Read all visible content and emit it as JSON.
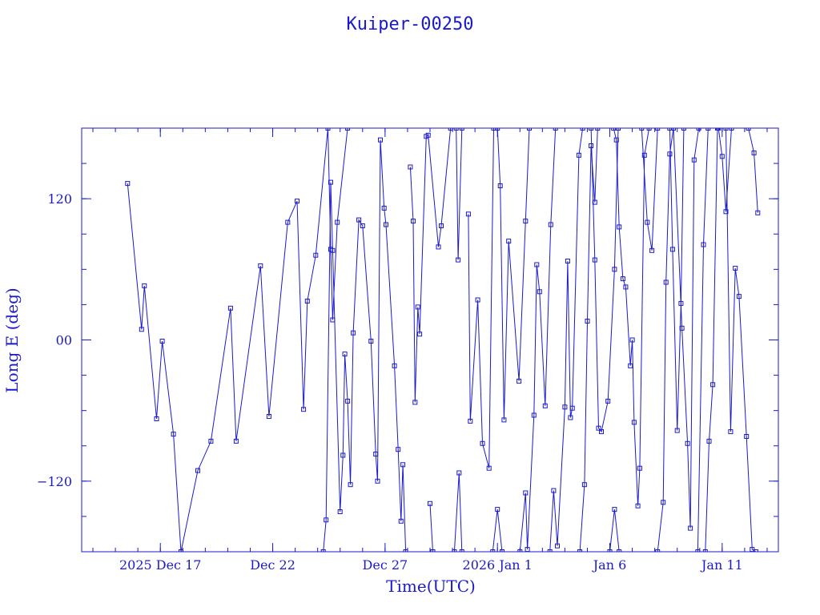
{
  "chart_data": {
    "type": "line",
    "title": "Kuiper-00250",
    "xlabel": "Time(UTC)",
    "ylabel": "Long E (deg)",
    "xlim": [
      "2025-12-13T12:00",
      "2026-01-13T12:00"
    ],
    "ylim": [
      -180,
      180
    ],
    "x_ticks": [
      {
        "date": "2025-12-17",
        "label": "2025 Dec 17"
      },
      {
        "date": "2025-12-22",
        "label": "Dec 22"
      },
      {
        "date": "2025-12-27",
        "label": "Dec 27"
      },
      {
        "date": "2026-01-01",
        "label": "2026 Jan  1"
      },
      {
        "date": "2026-01-06",
        "label": "Jan  6"
      },
      {
        "date": "2026-01-11",
        "label": "Jan 11"
      }
    ],
    "y_ticks": [
      {
        "value": 120,
        "label": "120"
      },
      {
        "value": 0,
        "label": "00"
      },
      {
        "value": -120,
        "label": "−120"
      }
    ],
    "grid": false,
    "colors": {
      "line": "#1a1acc",
      "axis": "#1a1acc",
      "background": "#ffffff"
    },
    "series": [
      {
        "points": [
          [
            "2025-12-15T13:00",
            133
          ],
          [
            "2025-12-16T04:00",
            9
          ],
          [
            "2025-12-16T07:00",
            46
          ],
          [
            "2025-12-16T20:00",
            -67
          ],
          [
            "2025-12-17T02:00",
            -1
          ],
          [
            "2025-12-17T14:00",
            -80
          ],
          [
            "2025-12-17T22:00",
            -180
          ],
          [
            "2025-12-18T16:00",
            -111
          ],
          [
            "2025-12-19T06:00",
            -86
          ],
          [
            "2025-12-20T03:00",
            27
          ],
          [
            "2025-12-20T09:00",
            -86
          ],
          [
            "2025-12-21T11:00",
            63
          ],
          [
            "2025-12-21T20:00",
            -65
          ],
          [
            "2025-12-22T16:00",
            100
          ],
          [
            "2025-12-23T02:00",
            118
          ],
          [
            "2025-12-23T09:00",
            -59
          ],
          [
            "2025-12-23T13:00",
            33
          ],
          [
            "2025-12-23T22:00",
            72
          ],
          [
            "2025-12-24T11:00",
            180
          ],
          [
            "2025-12-24T14:00",
            77
          ],
          [
            "2025-12-24T16:00",
            17
          ],
          [
            "2025-12-24T21:00",
            100
          ],
          [
            "2025-12-25T08:00",
            180
          ]
        ]
      },
      {
        "points": [
          [
            "2025-12-24T06:00",
            -180
          ],
          [
            "2025-12-24T09:00",
            -153
          ],
          [
            "2025-12-24T14:00",
            134
          ],
          [
            "2025-12-24T16:00",
            76
          ],
          [
            "2025-12-25T00:00",
            -146
          ],
          [
            "2025-12-25T03:00",
            -98
          ],
          [
            "2025-12-25T05:00",
            -12
          ],
          [
            "2025-12-25T08:00",
            -52
          ],
          [
            "2025-12-25T11:00",
            -123
          ],
          [
            "2025-12-25T14:00",
            6
          ],
          [
            "2025-12-25T20:00",
            102
          ],
          [
            "2025-12-26T00:00",
            97
          ],
          [
            "2025-12-26T09:00",
            -1
          ],
          [
            "2025-12-26T14:00",
            -97
          ],
          [
            "2025-12-26T16:00",
            -120
          ],
          [
            "2025-12-26T19:00",
            170
          ],
          [
            "2025-12-26T23:00",
            112
          ],
          [
            "2025-12-27T01:00",
            98
          ],
          [
            "2025-12-27T10:00",
            -22
          ],
          [
            "2025-12-27T14:00",
            -93
          ],
          [
            "2025-12-27T17:00",
            -154
          ],
          [
            "2025-12-27T19:00",
            -106
          ],
          [
            "2025-12-27T22:00",
            -180
          ]
        ]
      },
      {
        "points": [
          [
            "2025-12-28T03:00",
            147
          ],
          [
            "2025-12-28T06:00",
            101
          ],
          [
            "2025-12-28T08:00",
            -53
          ],
          [
            "2025-12-28T11:00",
            28
          ],
          [
            "2025-12-28T13:00",
            5
          ],
          [
            "2025-12-28T20:00",
            173
          ],
          [
            "2025-12-28T22:00",
            174
          ],
          [
            "2025-12-29T09:00",
            79
          ],
          [
            "2025-12-29T12:00",
            97
          ],
          [
            "2025-12-29T22:00",
            180
          ]
        ]
      },
      {
        "points": [
          [
            "2025-12-29T00:00",
            -139
          ],
          [
            "2025-12-29T03:00",
            -180
          ]
        ]
      },
      {
        "points": [
          [
            "2025-12-30T02:00",
            -180
          ],
          [
            "2025-12-30T07:00",
            -113
          ],
          [
            "2025-12-30T10:00",
            -180
          ]
        ]
      },
      {
        "points": [
          [
            "2025-12-30T04:00",
            180
          ],
          [
            "2025-12-30T06:00",
            68
          ],
          [
            "2025-12-30T10:00",
            180
          ]
        ]
      },
      {
        "points": [
          [
            "2025-12-30T17:00",
            107
          ],
          [
            "2025-12-30T19:00",
            -69
          ],
          [
            "2025-12-31T03:00",
            34
          ],
          [
            "2025-12-31T08:00",
            -88
          ],
          [
            "2025-12-31T15:00",
            -109
          ],
          [
            "2025-12-31T20:00",
            180
          ]
        ]
      },
      {
        "points": [
          [
            "2025-12-31T19:00",
            -180
          ],
          [
            "2026-01-01T00:00",
            -144
          ],
          [
            "2026-01-01T05:00",
            -180
          ]
        ]
      },
      {
        "points": [
          [
            "2026-01-01T00:00",
            180
          ],
          [
            "2026-01-01T03:00",
            131
          ],
          [
            "2026-01-01T07:00",
            -68
          ],
          [
            "2026-01-01T12:00",
            84
          ],
          [
            "2026-01-01T23:00",
            -35
          ],
          [
            "2026-01-02T06:00",
            101
          ],
          [
            "2026-01-02T10:00",
            180
          ]
        ]
      },
      {
        "points": [
          [
            "2026-01-02T00:00",
            -180
          ],
          [
            "2026-01-02T06:00",
            -130
          ],
          [
            "2026-01-02T08:00",
            -178
          ],
          [
            "2026-01-02T15:00",
            -64
          ],
          [
            "2026-01-02T18:00",
            64
          ],
          [
            "2026-01-02T21:00",
            41
          ],
          [
            "2026-01-03T03:00",
            -56
          ],
          [
            "2026-01-03T09:00",
            98
          ],
          [
            "2026-01-03T14:00",
            180
          ]
        ]
      },
      {
        "points": [
          [
            "2026-01-03T08:00",
            -180
          ],
          [
            "2026-01-03T12:00",
            -128
          ],
          [
            "2026-01-03T16:00",
            -175
          ],
          [
            "2026-01-04T00:00",
            -57
          ],
          [
            "2026-01-04T03:00",
            67
          ],
          [
            "2026-01-04T06:00",
            -66
          ],
          [
            "2026-01-04T08:00",
            -58
          ],
          [
            "2026-01-04T15:00",
            157
          ],
          [
            "2026-01-04T19:00",
            180
          ]
        ]
      },
      {
        "points": [
          [
            "2026-01-04T16:00",
            -180
          ],
          [
            "2026-01-04T21:00",
            -123
          ],
          [
            "2026-01-05T00:00",
            16
          ],
          [
            "2026-01-05T04:00",
            165
          ],
          [
            "2026-01-05T08:00",
            117
          ],
          [
            "2026-01-05T11:00",
            180
          ]
        ]
      },
      {
        "points": [
          [
            "2026-01-05T04:00",
            180
          ],
          [
            "2026-01-05T08:00",
            68
          ],
          [
            "2026-01-05T12:00",
            -75
          ],
          [
            "2026-01-05T15:00",
            -78
          ],
          [
            "2026-01-05T22:00",
            -52
          ],
          [
            "2026-01-06T05:00",
            60
          ],
          [
            "2026-01-06T09:00",
            180
          ]
        ]
      },
      {
        "points": [
          [
            "2026-01-06T00:00",
            -180
          ],
          [
            "2026-01-06T05:00",
            -144
          ],
          [
            "2026-01-06T10:00",
            -180
          ]
        ]
      },
      {
        "points": [
          [
            "2026-01-06T04:00",
            180
          ],
          [
            "2026-01-06T07:00",
            170
          ],
          [
            "2026-01-06T10:00",
            96
          ],
          [
            "2026-01-06T14:00",
            52
          ],
          [
            "2026-01-06T17:00",
            45
          ],
          [
            "2026-01-06T22:00",
            -22
          ],
          [
            "2026-01-07T00:00",
            0
          ],
          [
            "2026-01-07T02:00",
            -70
          ],
          [
            "2026-01-07T06:00",
            -141
          ],
          [
            "2026-01-07T08:00",
            -109
          ],
          [
            "2026-01-07T13:00",
            157
          ],
          [
            "2026-01-07T18:00",
            180
          ]
        ]
      },
      {
        "points": [
          [
            "2026-01-07T10:00",
            180
          ],
          [
            "2026-01-07T16:00",
            100
          ],
          [
            "2026-01-07T21:00",
            76
          ],
          [
            "2026-01-08T03:00",
            180
          ]
        ]
      },
      {
        "points": [
          [
            "2026-01-08T03:00",
            -180
          ],
          [
            "2026-01-08T09:00",
            -138
          ],
          [
            "2026-01-08T12:00",
            49
          ],
          [
            "2026-01-08T16:00",
            158
          ],
          [
            "2026-01-08T20:00",
            180
          ]
        ]
      },
      {
        "points": [
          [
            "2026-01-08T16:00",
            180
          ],
          [
            "2026-01-08T19:00",
            77
          ],
          [
            "2026-01-09T00:00",
            -77
          ],
          [
            "2026-01-09T04:00",
            31
          ],
          [
            "2026-01-09T07:00",
            180
          ]
        ]
      },
      {
        "points": [
          [
            "2026-01-08T20:00",
            180
          ],
          [
            "2026-01-09T05:00",
            10
          ],
          [
            "2026-01-09T11:00",
            -88
          ],
          [
            "2026-01-09T14:00",
            -160
          ],
          [
            "2026-01-09T18:00",
            153
          ],
          [
            "2026-01-09T23:00",
            180
          ]
        ]
      },
      {
        "points": [
          [
            "2026-01-09T22:00",
            -180
          ],
          [
            "2026-01-10T04:00",
            81
          ],
          [
            "2026-01-10T09:00",
            180
          ]
        ]
      },
      {
        "points": [
          [
            "2026-01-10T06:00",
            -180
          ],
          [
            "2026-01-10T10:00",
            -86
          ],
          [
            "2026-01-10T14:00",
            -38
          ],
          [
            "2026-01-10T19:00",
            180
          ]
        ]
      },
      {
        "points": [
          [
            "2026-01-10T20:00",
            180
          ],
          [
            "2026-01-11T00:00",
            156
          ],
          [
            "2026-01-11T04:00",
            109
          ],
          [
            "2026-01-11T10:00",
            180
          ]
        ]
      },
      {
        "points": [
          [
            "2026-01-11T04:00",
            180
          ],
          [
            "2026-01-11T09:00",
            -78
          ],
          [
            "2026-01-11T14:00",
            61
          ],
          [
            "2026-01-11T18:00",
            37
          ],
          [
            "2026-01-12T02:00",
            -82
          ],
          [
            "2026-01-12T08:00",
            -178
          ],
          [
            "2026-01-12T12:00",
            -180
          ]
        ]
      },
      {
        "points": [
          [
            "2026-01-12T04:00",
            180
          ],
          [
            "2026-01-12T10:00",
            159
          ],
          [
            "2026-01-12T14:00",
            108
          ]
        ]
      }
    ]
  }
}
